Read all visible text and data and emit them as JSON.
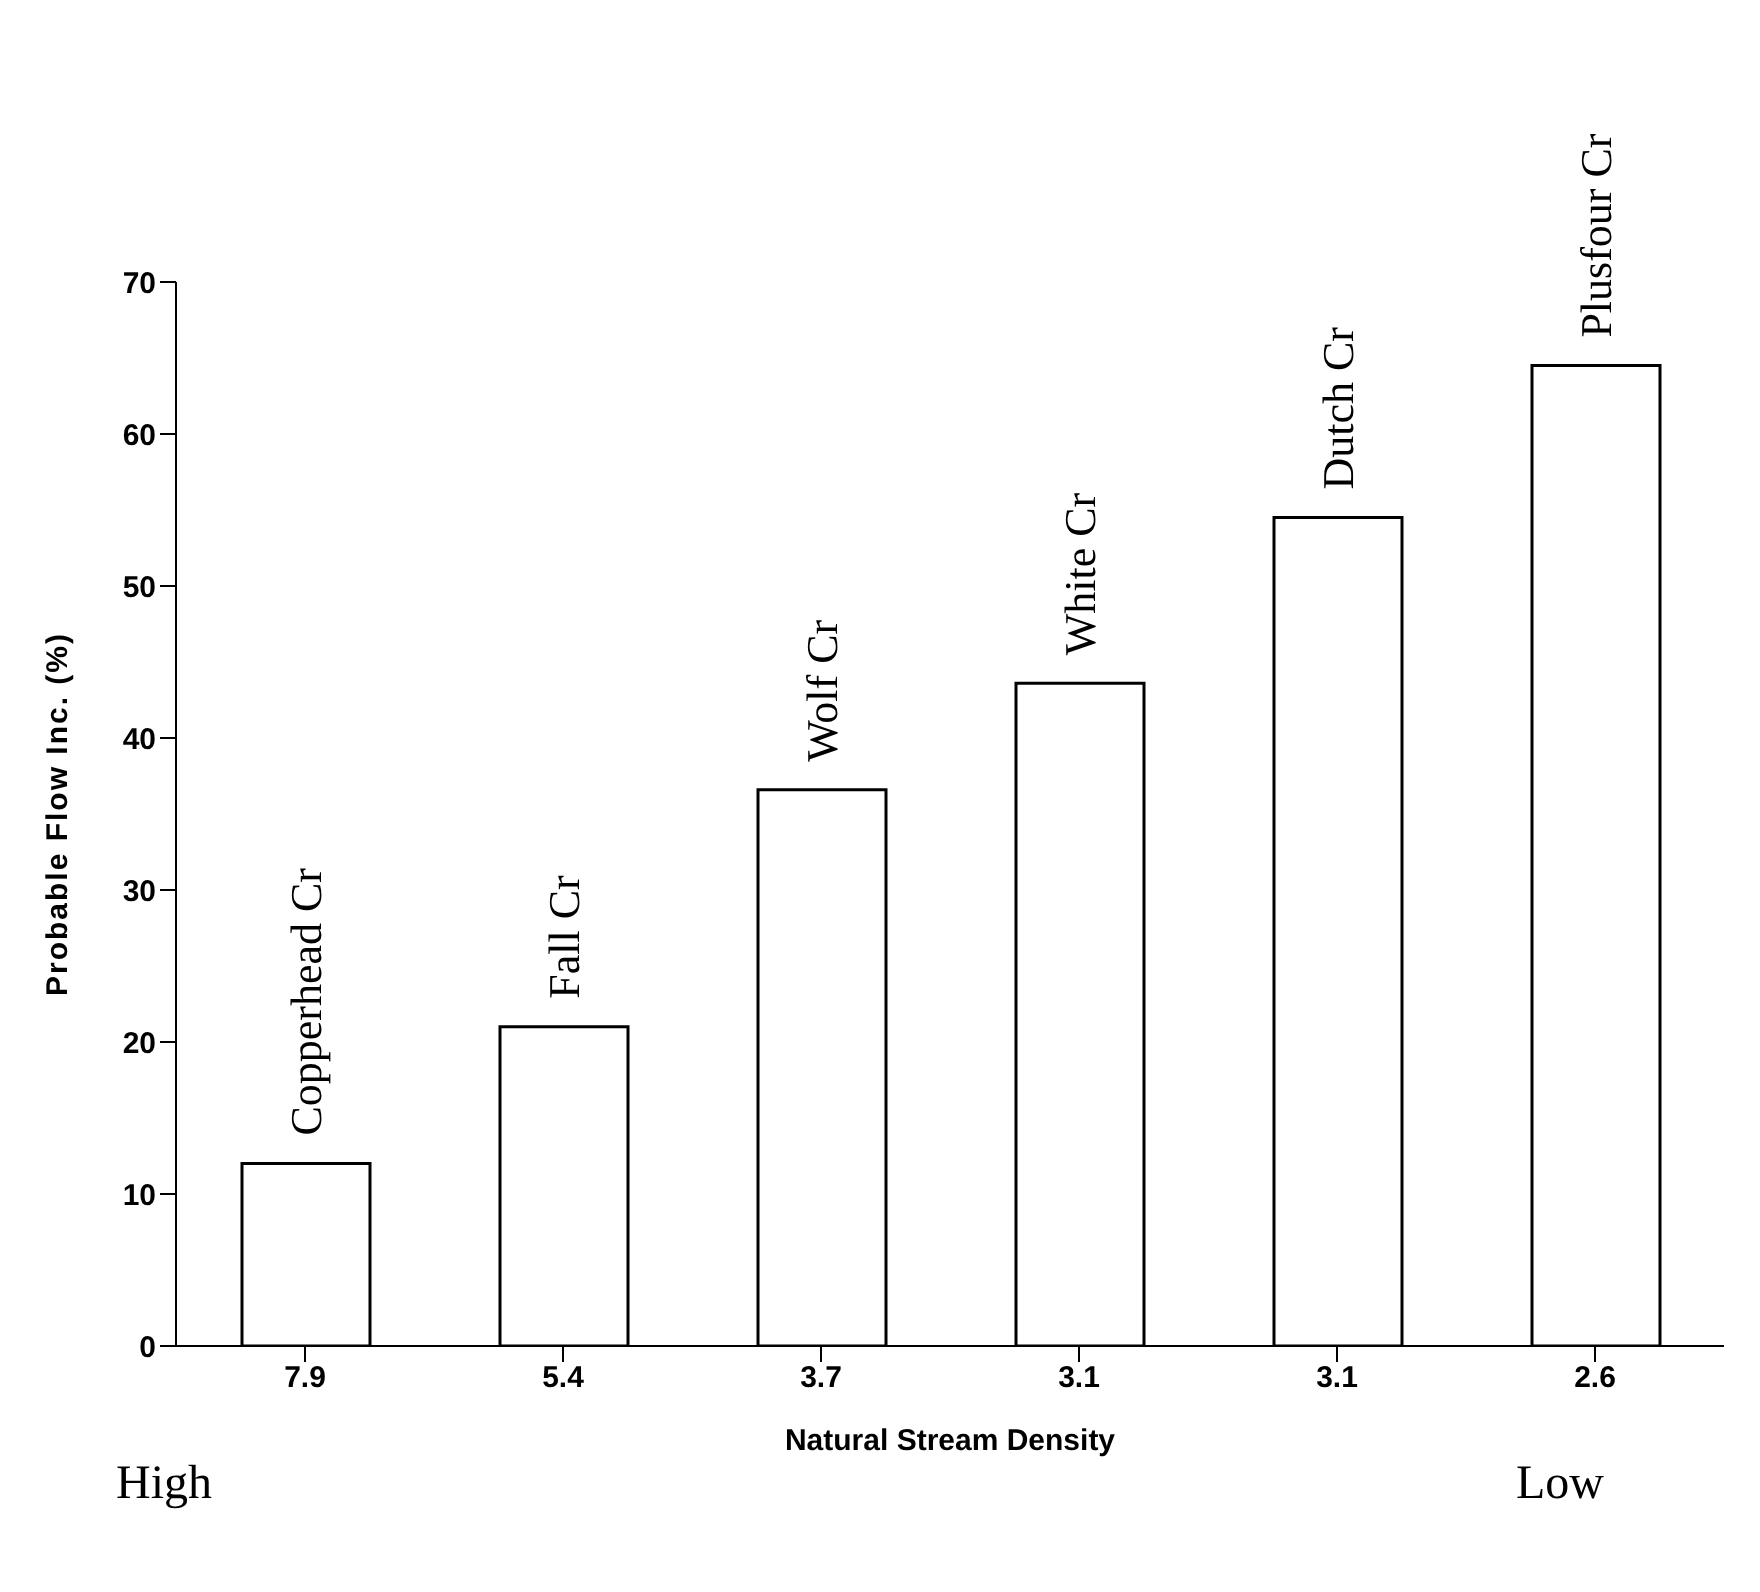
{
  "chart_data": {
    "type": "bar",
    "xlabel": "Natural Stream Density",
    "ylabel": "Probable Flow Inc. (%)",
    "categories": [
      "7.9",
      "5.4",
      "3.7",
      "3.1",
      "3.1",
      "2.6"
    ],
    "values": [
      12,
      21,
      36.6,
      43.6,
      54.5,
      64.5
    ],
    "color": "#ffffff",
    "ylim": [
      0,
      70
    ],
    "yticks": [
      0,
      10,
      20,
      30,
      40,
      50,
      60,
      70
    ],
    "grid": false,
    "legend": false,
    "annotations": [
      {
        "text": "Copperhead Cr",
        "x": "7.9",
        "y": 12
      },
      {
        "text": "Fall Cr",
        "x": "5.4",
        "y": 21
      },
      {
        "text": "Wolf Cr",
        "x": "3.7",
        "y": 36.6
      },
      {
        "text": "White Cr",
        "x": "3.1",
        "y": 43.6
      },
      {
        "text": "Dutch Cr",
        "y": 54.5
      },
      {
        "text": "Plusfour Cr",
        "x": "2.6",
        "y": 64.5
      },
      "High",
      "Low"
    ]
  }
}
